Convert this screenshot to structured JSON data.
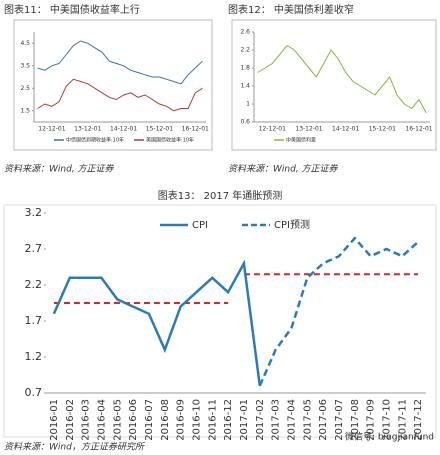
{
  "chart_data": [
    {
      "type": "line",
      "title": "图表11：  中美国债收益率上行",
      "source": "资料来源：Wind, 方正证券",
      "categories": [
        null,
        null,
        "12-12-01",
        null,
        null,
        null,
        null,
        "13-12-01",
        null,
        null,
        null,
        null,
        "14-12-01",
        null,
        null,
        null,
        null,
        "15-12-01",
        null,
        null,
        null,
        null,
        "16-12-01",
        null
      ],
      "series": [
        {
          "name": "中债国债到期收益率:10年",
          "color": "#3b6fb6",
          "values": [
            3.4,
            3.3,
            3.5,
            3.6,
            4.0,
            4.4,
            4.6,
            4.5,
            4.3,
            4.1,
            3.7,
            3.6,
            3.5,
            3.3,
            3.2,
            3.1,
            3.0,
            3.0,
            2.9,
            2.8,
            2.7,
            3.1,
            3.4,
            3.7
          ]
        },
        {
          "name": "美国国债收益率:10年",
          "color": "#b03a3a",
          "values": [
            1.6,
            1.8,
            1.7,
            1.9,
            2.6,
            2.9,
            2.8,
            2.7,
            2.5,
            2.3,
            2.1,
            2.0,
            2.2,
            2.3,
            2.1,
            2.2,
            2.0,
            1.8,
            1.7,
            1.5,
            1.6,
            1.6,
            2.3,
            2.5
          ]
        }
      ],
      "ylim": [
        1.0,
        5.0
      ],
      "yticks": [
        1.5,
        2.5,
        3.5,
        4.5
      ]
    },
    {
      "type": "line",
      "title": "图表12：  中美国债利差收窄",
      "source": "资料来源：Wind, 方正证券",
      "categories": [
        null,
        null,
        "12-12-01",
        null,
        null,
        null,
        null,
        "13-12-01",
        null,
        null,
        null,
        null,
        "14-12-01",
        null,
        null,
        null,
        null,
        "15-12-01",
        null,
        null,
        null,
        null,
        "16-12-01",
        null
      ],
      "series": [
        {
          "name": "中美国债利差",
          "color": "#8db43a",
          "values": [
            1.7,
            1.8,
            1.9,
            2.1,
            2.3,
            2.2,
            2.0,
            1.8,
            1.6,
            1.9,
            2.2,
            2.0,
            1.7,
            1.5,
            1.4,
            1.3,
            1.2,
            1.4,
            1.6,
            1.2,
            1.0,
            0.9,
            1.1,
            0.8
          ]
        }
      ],
      "ylim": [
        0.6,
        2.6
      ],
      "yticks": [
        0.6,
        1.0,
        1.4,
        1.8,
        2.2,
        2.6
      ]
    },
    {
      "type": "line",
      "title": "图表13：      2017 年通胀预测",
      "source": "资料来源：Wind，方正证券研究所",
      "categories": [
        "2016-01",
        "2016-02",
        "2016-03",
        "2016-04",
        "2016-05",
        "2016-06",
        "2016-07",
        "2016-08",
        "2016-09",
        "2016-10",
        "2016-11",
        "2016-12",
        "2017-01",
        "2017-02",
        "2017-03",
        "2017-04",
        "2017-05",
        "2017-06",
        "2017-07",
        "2017-08",
        "2017-09",
        "2017-10",
        "2017-11",
        "2017-12"
      ],
      "series": [
        {
          "name": "CPI",
          "color": "#2b7bb9",
          "dashed": false,
          "values": [
            1.8,
            2.3,
            2.3,
            2.3,
            2.0,
            1.9,
            1.8,
            1.3,
            1.9,
            2.1,
            2.3,
            2.1,
            2.5,
            0.8,
            null,
            null,
            null,
            null,
            null,
            null,
            null,
            null,
            null,
            null
          ]
        },
        {
          "name": "CPI预测",
          "color": "#2b7bb9",
          "dashed": true,
          "values": [
            null,
            null,
            null,
            null,
            null,
            null,
            null,
            null,
            null,
            null,
            null,
            null,
            null,
            0.8,
            1.3,
            1.6,
            2.3,
            2.5,
            2.6,
            2.85,
            2.6,
            2.7,
            2.6,
            2.8
          ]
        }
      ],
      "hlines": [
        {
          "value": 1.95,
          "start": 0,
          "end": 11,
          "color": "#d62728"
        },
        {
          "value": 2.35,
          "start": 12,
          "end": 23,
          "color": "#d62728"
        }
      ],
      "ylim": [
        0.7,
        3.2
      ],
      "yticks": [
        0.7,
        1.2,
        1.7,
        2.2,
        2.7,
        3.2
      ],
      "legend": "top"
    }
  ],
  "watermark": "微信号: bingjianfund"
}
